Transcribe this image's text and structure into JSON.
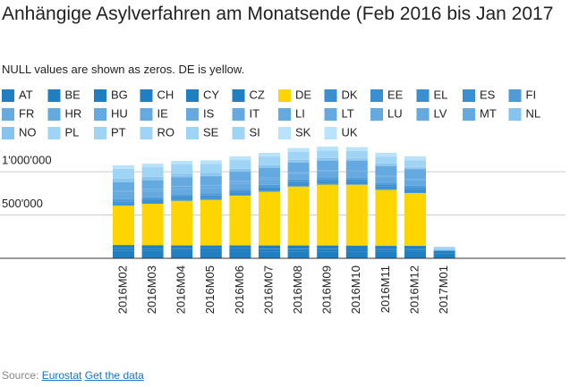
{
  "chart_data": {
    "type": "stacked-bar",
    "title": "Anhängige Asylverfahren am Monatsende (Feb 2016 bis Jan 2017",
    "subtitle": "NULL values are shown as zeros. DE is yellow.",
    "source_label": "Source:",
    "source_link": "Eurostat",
    "data_link": "Get the data",
    "categories": [
      "2016M02",
      "2016M03",
      "2016M04",
      "2016M05",
      "2016M06",
      "2016M07",
      "2016M08",
      "2016M09",
      "2016M10",
      "2016M11",
      "2016M12",
      "2017M01"
    ],
    "ylim": [
      0,
      1300000
    ],
    "yticks": [
      {
        "value": 500000,
        "label": "500'000"
      },
      {
        "value": 1000000,
        "label": "1'000'000"
      }
    ],
    "grid": true,
    "series": [
      {
        "name": "AT",
        "color": "#1f7fc1",
        "values": [
          85000,
          84000,
          83000,
          82000,
          82000,
          81000,
          80000,
          80000,
          79000,
          79000,
          78000,
          60000
        ]
      },
      {
        "name": "BE",
        "color": "#1f7fc1",
        "values": [
          28000,
          27000,
          27000,
          26000,
          26000,
          25000,
          25000,
          24000,
          24000,
          23000,
          23000,
          null
        ]
      },
      {
        "name": "BG",
        "color": "#1f7fc1",
        "values": [
          8000,
          8000,
          7000,
          7000,
          7000,
          6000,
          6000,
          6000,
          5000,
          5000,
          5000,
          null
        ]
      },
      {
        "name": "CH",
        "color": "#1f7fc1",
        "values": [
          30000,
          30000,
          31000,
          32000,
          33000,
          34000,
          35000,
          35000,
          36000,
          36000,
          36000,
          27000
        ]
      },
      {
        "name": "CY",
        "color": "#1f7fc1",
        "values": [
          3000,
          3000,
          3000,
          3000,
          3000,
          3000,
          3000,
          3000,
          3000,
          3000,
          3000,
          null
        ]
      },
      {
        "name": "CZ",
        "color": "#1f7fc1",
        "values": [
          1000,
          1000,
          1000,
          1000,
          1000,
          1000,
          1000,
          1000,
          1000,
          1000,
          1000,
          null
        ]
      },
      {
        "name": "DE",
        "color": "#ffd500",
        "values": [
          452000,
          476000,
          512000,
          524000,
          571000,
          619000,
          679000,
          702000,
          702000,
          643000,
          607000,
          null
        ]
      },
      {
        "name": "DK",
        "color": "#3a8fd0",
        "values": [
          10000,
          10000,
          9000,
          9000,
          8000,
          8000,
          7000,
          7000,
          6000,
          6000,
          6000,
          null
        ]
      },
      {
        "name": "EE",
        "color": "#3a8fd0",
        "values": [
          100,
          100,
          100,
          100,
          100,
          100,
          100,
          100,
          100,
          100,
          100,
          null
        ]
      },
      {
        "name": "EL",
        "color": "#3a8fd0",
        "values": [
          20000,
          21000,
          22000,
          24000,
          26000,
          28000,
          30000,
          32000,
          34000,
          36000,
          38000,
          null
        ]
      },
      {
        "name": "ES",
        "color": "#3a8fd0",
        "values": [
          15000,
          16000,
          17000,
          17000,
          18000,
          18000,
          19000,
          20000,
          20000,
          21000,
          22000,
          null
        ]
      },
      {
        "name": "FI",
        "color": "#4f9bd7",
        "values": [
          30000,
          29000,
          28000,
          27000,
          26000,
          25000,
          24000,
          23000,
          22000,
          21000,
          20000,
          null
        ]
      },
      {
        "name": "FR",
        "color": "#64a9e0",
        "values": [
          60000,
          60000,
          61000,
          61000,
          62000,
          62000,
          63000,
          63000,
          64000,
          64000,
          65000,
          null
        ]
      },
      {
        "name": "HR",
        "color": "#64a9e0",
        "values": [
          200,
          200,
          200,
          200,
          200,
          200,
          200,
          200,
          200,
          200,
          200,
          null
        ]
      },
      {
        "name": "HU",
        "color": "#64a9e0",
        "values": [
          30000,
          28000,
          26000,
          24000,
          22000,
          19000,
          16000,
          13000,
          11000,
          8000,
          5000,
          null
        ]
      },
      {
        "name": "IE",
        "color": "#64a9e0",
        "values": [
          4000,
          4000,
          4000,
          4000,
          4000,
          4000,
          4000,
          4000,
          4000,
          4000,
          4000,
          null
        ]
      },
      {
        "name": "IS",
        "color": "#64a9e0",
        "values": [
          500,
          500,
          500,
          500,
          500,
          500,
          500,
          500,
          500,
          500,
          500,
          null
        ]
      },
      {
        "name": "IT",
        "color": "#64a9e0",
        "values": [
          100000,
          102000,
          104000,
          106000,
          108000,
          110000,
          112000,
          113000,
          114000,
          115000,
          116000,
          null
        ]
      },
      {
        "name": "LI",
        "color": "#64a9e0",
        "values": [
          100,
          100,
          100,
          100,
          100,
          100,
          100,
          100,
          100,
          100,
          100,
          null
        ]
      },
      {
        "name": "LT",
        "color": "#64a9e0",
        "values": [
          100,
          100,
          100,
          100,
          100,
          100,
          100,
          100,
          100,
          100,
          100,
          null
        ]
      },
      {
        "name": "LU",
        "color": "#64a9e0",
        "values": [
          2000,
          2000,
          2000,
          2000,
          2000,
          2000,
          2000,
          2000,
          2000,
          2000,
          2000,
          null
        ]
      },
      {
        "name": "LV",
        "color": "#64a9e0",
        "values": [
          100,
          100,
          100,
          100,
          100,
          100,
          100,
          100,
          100,
          100,
          100,
          null
        ]
      },
      {
        "name": "MT",
        "color": "#64a9e0",
        "values": [
          1000,
          1000,
          1000,
          1000,
          1000,
          1000,
          1000,
          1000,
          1000,
          1000,
          1000,
          null
        ]
      },
      {
        "name": "NL",
        "color": "#86c3ef",
        "values": [
          20000,
          19000,
          18000,
          17000,
          16000,
          15000,
          14000,
          14000,
          13000,
          13000,
          12000,
          null
        ]
      },
      {
        "name": "NO",
        "color": "#86c3ef",
        "values": [
          20000,
          19000,
          18000,
          17000,
          16000,
          15000,
          14000,
          13000,
          12000,
          11000,
          10000,
          15000
        ]
      },
      {
        "name": "PL",
        "color": "#9fd4f5",
        "values": [
          2000,
          2000,
          2000,
          2000,
          2000,
          2000,
          2000,
          2000,
          2000,
          2000,
          2000,
          null
        ]
      },
      {
        "name": "PT",
        "color": "#9fd4f5",
        "values": [
          500,
          500,
          500,
          500,
          500,
          500,
          500,
          500,
          500,
          500,
          500,
          null
        ]
      },
      {
        "name": "RO",
        "color": "#9fd4f5",
        "values": [
          500,
          500,
          500,
          500,
          500,
          500,
          500,
          500,
          500,
          500,
          500,
          null
        ]
      },
      {
        "name": "SE",
        "color": "#9fd4f5",
        "values": [
          110000,
          108000,
          105000,
          102000,
          98000,
          95000,
          90000,
          85000,
          82000,
          78000,
          74000,
          30000
        ]
      },
      {
        "name": "SI",
        "color": "#9fd4f5",
        "values": [
          300,
          300,
          300,
          300,
          300,
          300,
          300,
          300,
          300,
          300,
          300,
          null
        ]
      },
      {
        "name": "SK",
        "color": "#b8e3fa",
        "values": [
          20,
          20,
          20,
          20,
          20,
          20,
          20,
          20,
          20,
          20,
          20,
          null
        ]
      },
      {
        "name": "UK",
        "color": "#b8e3fa",
        "values": [
          40000,
          40000,
          41000,
          41000,
          42000,
          42000,
          43000,
          43000,
          44000,
          44000,
          45000,
          null
        ]
      }
    ]
  }
}
